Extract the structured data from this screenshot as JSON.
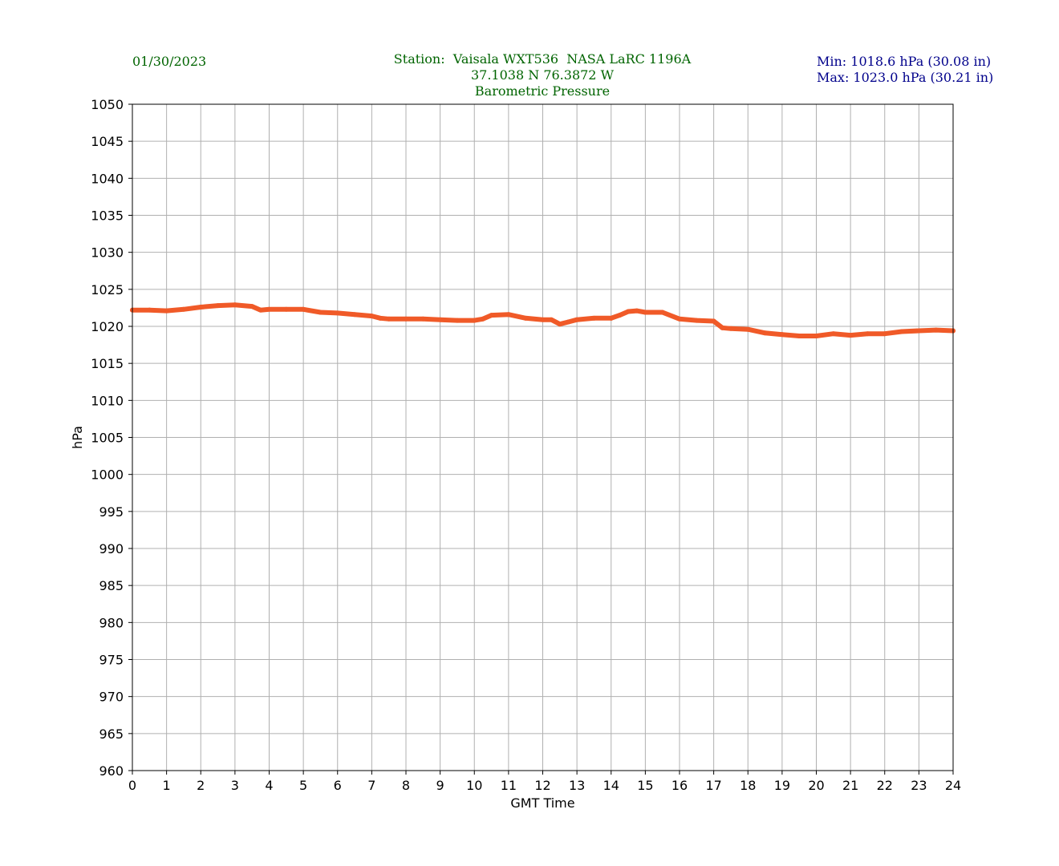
{
  "header": {
    "date": "01/30/2023",
    "station_line": "Station:  Vaisala WXT536  NASA LaRC 1196A",
    "coords_line": "37.1038 N 76.3872 W",
    "variable_line": "Barometric Pressure",
    "min_text": "Min: 1018.6 hPa (30.08 in)",
    "max_text": "Max: 1023.0 hPa (30.21 in)"
  },
  "colors": {
    "line": "#f05a28",
    "grid": "#b0b0b0",
    "header_green": "#006400",
    "header_navy": "#00008b"
  },
  "chart_data": {
    "type": "line",
    "title": "Barometric Pressure",
    "xlabel": "GMT Time",
    "ylabel": "hPa",
    "xlim": [
      0,
      24
    ],
    "ylim": [
      960,
      1050
    ],
    "xticks": [
      0,
      1,
      2,
      3,
      4,
      5,
      6,
      7,
      8,
      9,
      10,
      11,
      12,
      13,
      14,
      15,
      16,
      17,
      18,
      19,
      20,
      21,
      22,
      23,
      24
    ],
    "yticks": [
      960,
      965,
      970,
      975,
      980,
      985,
      990,
      995,
      1000,
      1005,
      1010,
      1015,
      1020,
      1025,
      1030,
      1035,
      1040,
      1045,
      1050
    ],
    "grid": true,
    "series": [
      {
        "x": [
          0,
          0.5,
          1,
          1.5,
          2,
          2.5,
          3,
          3.5,
          3.75,
          4,
          4.5,
          5,
          5.5,
          6,
          6.5,
          7,
          7.25,
          7.5,
          8,
          8.5,
          9,
          9.5,
          10,
          10.25,
          10.5,
          11,
          11.5,
          12,
          12.25,
          12.5,
          12.75,
          13,
          13.5,
          14,
          14.25,
          14.5,
          14.75,
          15,
          15.5,
          16,
          16.5,
          17,
          17.25,
          17.5,
          18,
          18.5,
          19,
          19.5,
          20,
          20.5,
          21,
          21.5,
          22,
          22.5,
          23,
          23.5,
          24
        ],
        "values": [
          1022.2,
          1022.2,
          1022.1,
          1022.3,
          1022.6,
          1022.8,
          1022.9,
          1022.7,
          1022.2,
          1022.3,
          1022.3,
          1022.3,
          1021.9,
          1021.8,
          1021.6,
          1021.4,
          1021.1,
          1021.0,
          1021.0,
          1021.0,
          1020.9,
          1020.8,
          1020.8,
          1021.0,
          1021.5,
          1021.6,
          1021.1,
          1020.9,
          1020.9,
          1020.3,
          1020.6,
          1020.9,
          1021.1,
          1021.1,
          1021.5,
          1022.0,
          1022.1,
          1021.9,
          1021.9,
          1021.0,
          1020.8,
          1020.7,
          1019.8,
          1019.7,
          1019.6,
          1019.1,
          1018.9,
          1018.7,
          1018.7,
          1019.0,
          1018.8,
          1019.0,
          1019.0,
          1019.3,
          1019.4,
          1019.5,
          1019.4
        ]
      }
    ]
  }
}
